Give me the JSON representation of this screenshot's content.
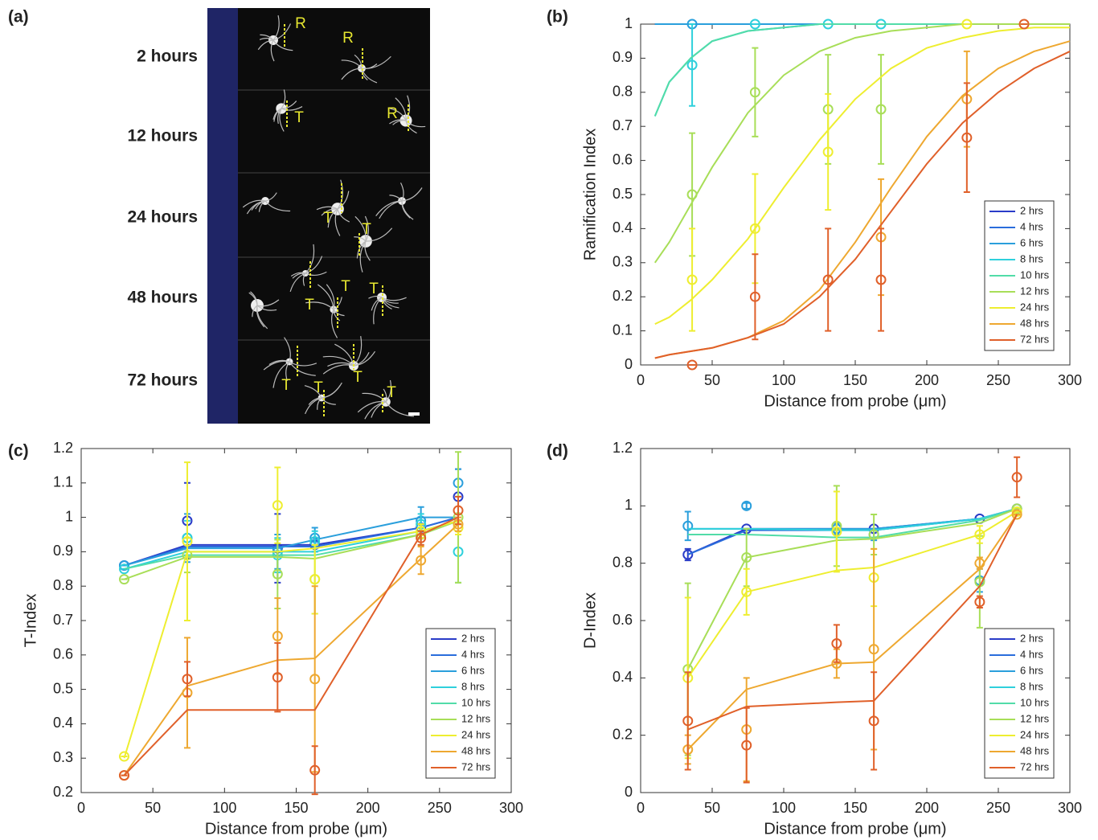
{
  "image_panel": {
    "label": "(a)",
    "rows": [
      "2 hours",
      "12 hours",
      "24 hours",
      "48 hours",
      "72 hours"
    ],
    "annotations": [
      "R",
      "R",
      "T",
      "R",
      "T",
      "T",
      "T",
      "T",
      "T",
      "T",
      "T",
      "T",
      "T"
    ]
  },
  "chart_data": [
    {
      "type": "line",
      "panel_label": "(b)",
      "x_label": "Distance from probe (μm)",
      "y_label": "Ramification Index",
      "xlim": [
        0,
        300
      ],
      "ylim": [
        0,
        1
      ],
      "xticks": [
        0,
        50,
        100,
        150,
        200,
        250,
        300
      ],
      "yticks": [
        0,
        0.1,
        0.2,
        0.3,
        0.4,
        0.5,
        0.6,
        0.7,
        0.8,
        0.9,
        1
      ],
      "legend": "lower right",
      "x": [
        10,
        20,
        35,
        50,
        75,
        100,
        125,
        150,
        175,
        200,
        225,
        250,
        275,
        300
      ],
      "series": [
        {
          "name": "2 hrs",
          "color": "#2a3cc8",
          "values": [
            1,
            1,
            1,
            1,
            1,
            1,
            1,
            1,
            1,
            1,
            1,
            1,
            1,
            1
          ]
        },
        {
          "name": "4 hrs",
          "color": "#2a6ddc",
          "values": [
            1,
            1,
            1,
            1,
            1,
            1,
            1,
            1,
            1,
            1,
            1,
            1,
            1,
            1
          ]
        },
        {
          "name": "6 hrs",
          "color": "#2a9fdc",
          "values": [
            1,
            1,
            1,
            1,
            1,
            1,
            1,
            1,
            1,
            1,
            1,
            1,
            1,
            1
          ],
          "points_x": [
            36
          ],
          "points": [
            1
          ],
          "errors": [
            0
          ]
        },
        {
          "name": "8 hrs",
          "color": "#2fd0dc",
          "values": [
            0.73,
            0.83,
            0.9,
            0.95,
            0.98,
            0.99,
            1,
            1,
            1,
            1,
            1,
            1,
            1,
            1
          ],
          "points_x": [
            36,
            80,
            131,
            168
          ],
          "points": [
            0.88,
            1,
            1,
            1
          ],
          "errors": [
            0.12,
            0,
            0,
            0
          ]
        },
        {
          "name": "10 hrs",
          "color": "#52dca8",
          "values": [
            0.73,
            0.83,
            0.9,
            0.95,
            0.98,
            0.99,
            1,
            1,
            1,
            1,
            1,
            1,
            1,
            1
          ]
        },
        {
          "name": "12 hrs",
          "color": "#a8de58",
          "values": [
            0.3,
            0.36,
            0.47,
            0.58,
            0.74,
            0.85,
            0.92,
            0.96,
            0.98,
            0.99,
            1,
            1,
            1,
            1
          ],
          "points_x": [
            36,
            80,
            131,
            168
          ],
          "points": [
            0.5,
            0.8,
            0.75,
            0.75
          ],
          "errors": [
            0.18,
            0.13,
            0.16,
            0.16
          ]
        },
        {
          "name": "24 hrs",
          "color": "#eeee30",
          "values": [
            0.12,
            0.14,
            0.19,
            0.25,
            0.37,
            0.52,
            0.66,
            0.78,
            0.87,
            0.93,
            0.96,
            0.98,
            0.99,
            0.99
          ],
          "points_x": [
            36,
            80,
            131,
            228
          ],
          "points": [
            0.25,
            0.4,
            0.625,
            1
          ],
          "errors": [
            0.15,
            0.16,
            0.17,
            0
          ]
        },
        {
          "name": "48 hrs",
          "color": "#eea830",
          "values": [
            0.02,
            0.03,
            0.04,
            0.05,
            0.08,
            0.13,
            0.22,
            0.36,
            0.52,
            0.67,
            0.79,
            0.87,
            0.92,
            0.95
          ],
          "points_x": [
            168,
            228
          ],
          "points": [
            0.375,
            0.78
          ],
          "errors": [
            0.17,
            0.14
          ]
        },
        {
          "name": "72 hrs",
          "color": "#e0602a",
          "values": [
            0.02,
            0.03,
            0.04,
            0.05,
            0.08,
            0.12,
            0.2,
            0.31,
            0.45,
            0.59,
            0.71,
            0.8,
            0.87,
            0.92
          ],
          "points_x": [
            36,
            80,
            131,
            168,
            228,
            268
          ],
          "points": [
            0,
            0.2,
            0.25,
            0.25,
            0.667,
            1
          ],
          "errors": [
            0,
            0.125,
            0.15,
            0.15,
            0.16,
            0
          ]
        }
      ]
    },
    {
      "type": "line",
      "panel_label": "(c)",
      "x_label": "Distance from probe (μm)",
      "y_label": "T-Index",
      "xlim": [
        0,
        300
      ],
      "ylim": [
        0.2,
        1.2
      ],
      "xticks": [
        0,
        50,
        100,
        150,
        200,
        250,
        300
      ],
      "yticks": [
        0.2,
        0.3,
        0.4,
        0.5,
        0.6,
        0.7,
        0.8,
        0.9,
        1,
        1.1,
        1.2
      ],
      "legend": "lower right",
      "x": [
        30,
        74,
        137,
        163,
        237,
        263
      ],
      "series": [
        {
          "name": "2 hrs",
          "color": "#2a3cc8",
          "values": [
            0.86,
            0.92,
            0.92,
            0.92,
            0.97,
            1
          ],
          "points": [
            0.86,
            0.99,
            0.91,
            0.92,
            0.97,
            1.06
          ],
          "errors": [
            0,
            0.11,
            0.1,
            0.02,
            0.03,
            0.08
          ]
        },
        {
          "name": "4 hrs",
          "color": "#2a6ddc",
          "values": [
            0.86,
            0.915,
            0.915,
            0.915,
            0.97,
            1
          ]
        },
        {
          "name": "6 hrs",
          "color": "#2a9fdc",
          "values": [
            0.86,
            0.91,
            0.91,
            0.935,
            1,
            1
          ],
          "points": [
            0.86,
            0.94,
            0.9,
            0.94,
            0.99,
            1.1
          ],
          "errors": [
            0,
            0.07,
            0.05,
            0.03,
            0.04,
            0.04
          ]
        },
        {
          "name": "8 hrs",
          "color": "#2fd0dc",
          "values": [
            0.85,
            0.9,
            0.9,
            0.9,
            0.96,
            0.99
          ],
          "points": [
            0.85,
            0.94,
            0.89,
            0.93,
            0.98,
            0.9
          ],
          "errors": [
            0,
            0.05,
            0.05,
            0.03,
            0.03,
            0.09
          ]
        },
        {
          "name": "10 hrs",
          "color": "#52dca8",
          "values": [
            0.85,
            0.89,
            0.89,
            0.89,
            0.95,
            0.99
          ]
        },
        {
          "name": "12 hrs",
          "color": "#a8de58",
          "values": [
            0.82,
            0.885,
            0.885,
            0.88,
            0.95,
            0.99
          ],
          "points": [
            0.82,
            0.89,
            0.835,
            0.82,
            0.95,
            1
          ],
          "errors": [
            0,
            0.05,
            0.1,
            0.1,
            0.03,
            0.19
          ]
        },
        {
          "name": "24 hrs",
          "color": "#eeee30",
          "values": [
            0.3,
            0.9,
            0.9,
            0.91,
            0.96,
            0.99
          ],
          "points": [
            0.305,
            0.93,
            1.035,
            0.82,
            0.96,
            0.97
          ],
          "errors": [
            0,
            0.23,
            0.11,
            0.1,
            0.02,
            0.02
          ]
        },
        {
          "name": "48 hrs",
          "color": "#eea830",
          "values": [
            0.25,
            0.51,
            0.585,
            0.59,
            0.88,
            0.98
          ],
          "points": [
            0.25,
            0.49,
            0.655,
            0.53,
            0.875,
            0.98
          ],
          "errors": [
            0,
            0.16,
            0.11,
            0.27,
            0.04,
            0.02
          ]
        },
        {
          "name": "72 hrs",
          "color": "#e0602a",
          "values": [
            0.25,
            0.44,
            0.44,
            0.44,
            0.95,
            1
          ],
          "points": [
            0.25,
            0.53,
            0.535,
            0.265,
            0.94,
            1.02
          ],
          "errors": [
            0,
            0.05,
            0.1,
            0.07,
            0.02,
            0.04
          ]
        }
      ]
    },
    {
      "type": "line",
      "panel_label": "(d)",
      "x_label": "Distance from probe (μm)",
      "y_label": "D-Index",
      "xlim": [
        0,
        300
      ],
      "ylim": [
        0,
        1.2
      ],
      "xticks": [
        0,
        50,
        100,
        150,
        200,
        250,
        300
      ],
      "yticks": [
        0,
        0.2,
        0.4,
        0.6,
        0.8,
        1,
        1.2
      ],
      "legend": "lower right",
      "x": [
        33,
        74,
        137,
        163,
        237,
        263
      ],
      "series": [
        {
          "name": "2 hrs",
          "color": "#2a3cc8",
          "values": [
            0.83,
            0.92,
            0.92,
            0.92,
            0.955,
            0.99
          ],
          "points": [
            0.83,
            0.92,
            0.92,
            0.92,
            0.955,
            0.99
          ],
          "errors": [
            0.02,
            0,
            0,
            0,
            0,
            0
          ]
        },
        {
          "name": "4 hrs",
          "color": "#2a6ddc",
          "values": [
            0.83,
            0.915,
            0.915,
            0.915,
            0.955,
            0.99
          ]
        },
        {
          "name": "6 hrs",
          "color": "#2a9fdc",
          "values": [
            0.92,
            0.92,
            0.92,
            0.92,
            0.955,
            0.99
          ],
          "points": [
            0.93,
            1,
            0.92,
            0.9,
            0.74,
            0.99
          ],
          "errors": [
            0.05,
            0.01,
            0.02,
            0.02,
            0.04,
            0
          ]
        },
        {
          "name": "8 hrs",
          "color": "#2fd0dc",
          "values": [
            0.92,
            0.92,
            0.915,
            0.915,
            0.955,
            0.99
          ]
        },
        {
          "name": "10 hrs",
          "color": "#52dca8",
          "values": [
            0.9,
            0.9,
            0.89,
            0.89,
            0.95,
            0.99
          ]
        },
        {
          "name": "12 hrs",
          "color": "#a8de58",
          "values": [
            0.43,
            0.82,
            0.88,
            0.885,
            0.94,
            0.99
          ],
          "points": [
            0.43,
            0.82,
            0.93,
            0.9,
            0.735,
            0.99
          ],
          "errors": [
            0.3,
            0.1,
            0.14,
            0.07,
            0.16,
            0
          ]
        },
        {
          "name": "24 hrs",
          "color": "#eeee30",
          "values": [
            0.4,
            0.7,
            0.775,
            0.785,
            0.9,
            0.98
          ],
          "points": [
            0.4,
            0.7,
            0.91,
            0.75,
            0.9,
            0.98
          ],
          "errors": [
            0.28,
            0.08,
            0.14,
            0.1,
            0.03,
            0
          ]
        },
        {
          "name": "48 hrs",
          "color": "#eea830",
          "values": [
            0.15,
            0.36,
            0.45,
            0.455,
            0.78,
            0.97
          ],
          "points": [
            0.15,
            0.22,
            0.45,
            0.5,
            0.8,
            0.97
          ],
          "errors": [
            0.05,
            0.18,
            0.05,
            0.35,
            0.02,
            0
          ]
        },
        {
          "name": "72 hrs",
          "color": "#e0602a",
          "values": [
            0.22,
            0.3,
            0.315,
            0.32,
            0.72,
            0.97
          ],
          "points": [
            0.25,
            0.165,
            0.52,
            0.25,
            0.665,
            1.1
          ],
          "errors": [
            0.17,
            0.13,
            0.065,
            0.17,
            0.02,
            0.07
          ]
        }
      ]
    }
  ]
}
